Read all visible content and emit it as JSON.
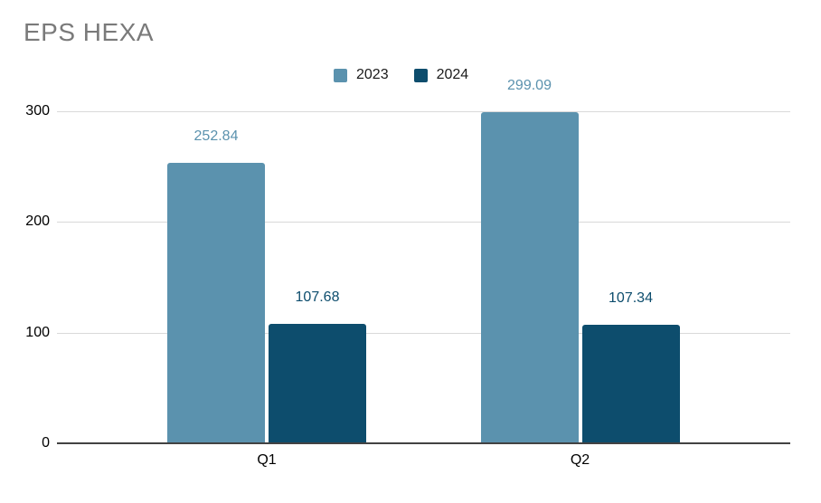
{
  "title": "EPS HEXA",
  "colors": {
    "title_text": "#7a7a7a",
    "gridline": "#d9d9d9",
    "axis_line": "#424242",
    "tick_label": "#000000",
    "series_2023": "#5b92ae",
    "series_2024": "#0d4d6d"
  },
  "legend": {
    "position": "top-center",
    "items": [
      {
        "label": "2023",
        "color": "#5b92ae"
      },
      {
        "label": "2024",
        "color": "#0d4d6d"
      }
    ]
  },
  "chart_data": {
    "type": "bar",
    "title": "EPS HEXA",
    "categories": [
      "Q1",
      "Q2"
    ],
    "series": [
      {
        "name": "2023",
        "color": "#5b92ae",
        "values": [
          252.84,
          299.09
        ],
        "labels": [
          "252.84",
          "299.09"
        ]
      },
      {
        "name": "2024",
        "color": "#0d4d6d",
        "values": [
          107.68,
          107.34
        ],
        "labels": [
          "107.68",
          "107.34"
        ]
      }
    ],
    "xlabel": "",
    "ylabel": "",
    "ylim": [
      0,
      300
    ],
    "yticks": [
      0,
      100,
      200,
      300
    ],
    "grid": true,
    "legend_position": "top-center",
    "data_labels": true
  }
}
